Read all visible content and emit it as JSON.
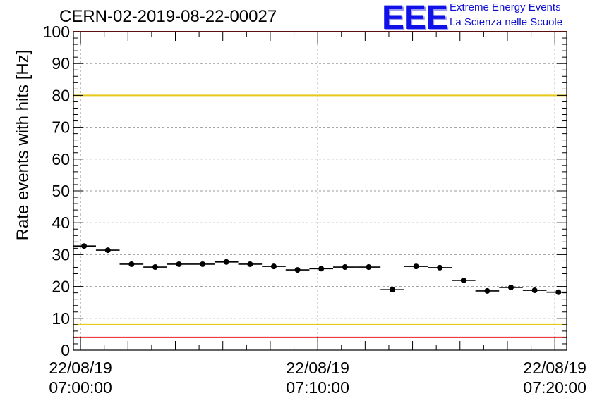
{
  "title": "CERN-02-2019-08-22-00027",
  "logo": {
    "mark": "EEE",
    "line1": "Extreme Energy Events",
    "line2": "La Scienza nelle Scuole",
    "color": "#1010e8"
  },
  "chart_data": {
    "type": "scatter",
    "ylabel": "Rate events with hits [Hz]",
    "ylim": [
      0,
      100
    ],
    "yticks": [
      0,
      10,
      20,
      30,
      40,
      50,
      60,
      70,
      80,
      90,
      100
    ],
    "xlim_minutes": [
      -0.3,
      20.5
    ],
    "x_tick_labels": [
      {
        "minute": 0,
        "date": "22/08/19",
        "time": "07:00:00"
      },
      {
        "minute": 10,
        "date": "22/08/19",
        "time": "07:10:00"
      },
      {
        "minute": 20,
        "date": "22/08/19",
        "time": "07:20:00"
      }
    ],
    "grid": true,
    "reference_lines": [
      {
        "y": 100,
        "color": "#e8262a"
      },
      {
        "y": 80,
        "color": "#e8c81a"
      },
      {
        "y": 8,
        "color": "#e8c81a"
      },
      {
        "y": 4,
        "color": "#e8262a"
      }
    ],
    "series": [
      {
        "bin_width_minutes": 1,
        "points": [
          {
            "x": 0.15,
            "y": 32.7
          },
          {
            "x": 1.15,
            "y": 31.4
          },
          {
            "x": 2.15,
            "y": 27.0
          },
          {
            "x": 3.15,
            "y": 26.1
          },
          {
            "x": 4.15,
            "y": 27.0
          },
          {
            "x": 5.15,
            "y": 27.0
          },
          {
            "x": 6.15,
            "y": 27.7
          },
          {
            "x": 7.15,
            "y": 27.0
          },
          {
            "x": 8.15,
            "y": 26.3
          },
          {
            "x": 9.15,
            "y": 25.2
          },
          {
            "x": 10.15,
            "y": 25.6
          },
          {
            "x": 11.15,
            "y": 26.1
          },
          {
            "x": 12.15,
            "y": 26.1
          },
          {
            "x": 13.15,
            "y": 19.0
          },
          {
            "x": 14.15,
            "y": 26.3
          },
          {
            "x": 15.15,
            "y": 25.9
          },
          {
            "x": 16.15,
            "y": 21.9
          },
          {
            "x": 17.15,
            "y": 18.6
          },
          {
            "x": 18.15,
            "y": 19.7
          },
          {
            "x": 19.15,
            "y": 18.8
          },
          {
            "x": 20.15,
            "y": 18.2
          }
        ]
      }
    ]
  }
}
